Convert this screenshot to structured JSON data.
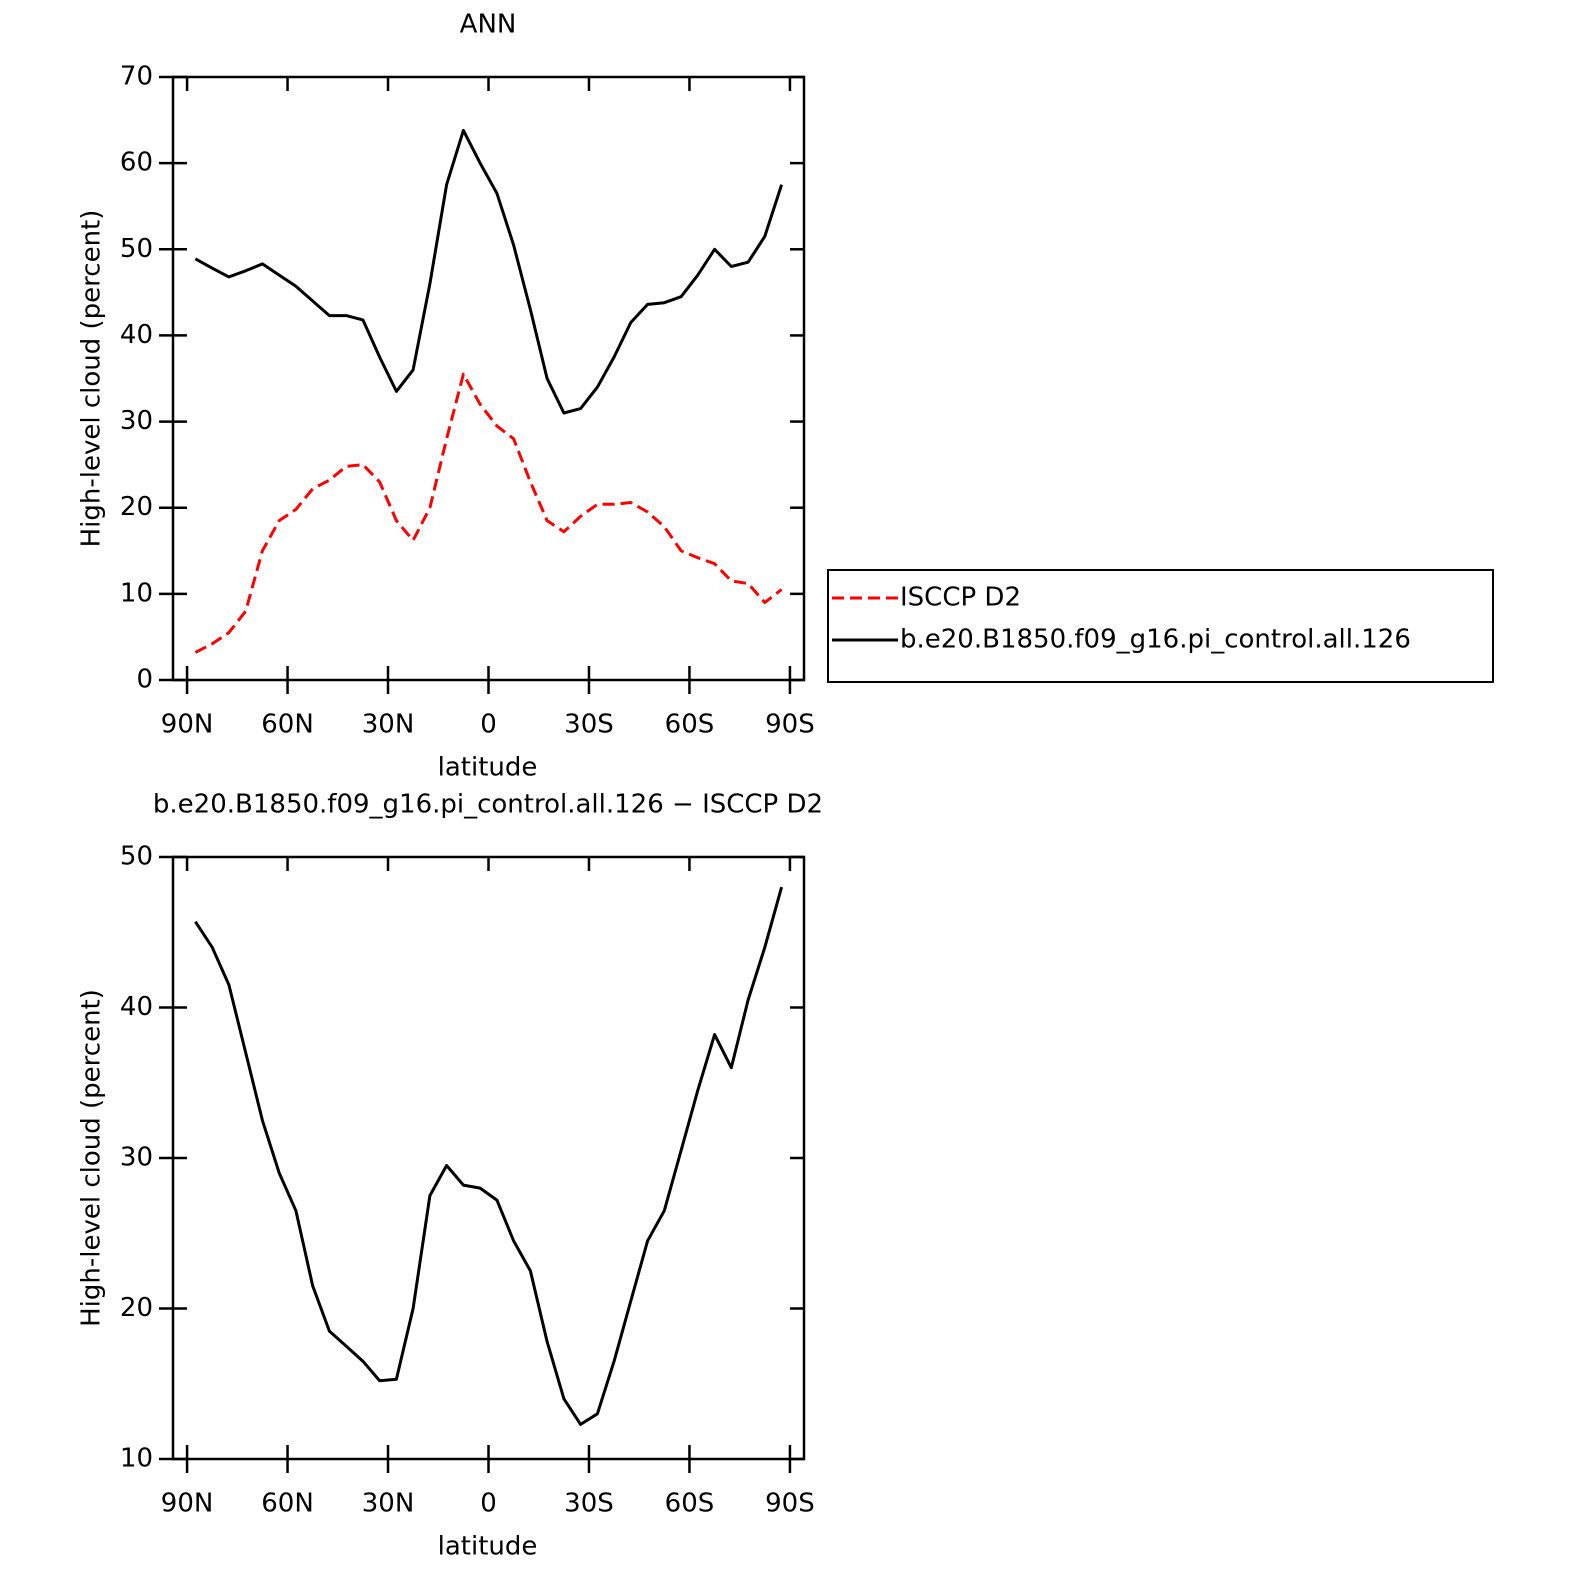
{
  "chart_data": [
    {
      "type": "line",
      "title": "ANN",
      "x_label": "latitude",
      "y_label": "High-level cloud (percent)",
      "x": [
        87.5,
        82.5,
        77.5,
        72.5,
        67.5,
        62.5,
        57.5,
        52.5,
        47.5,
        42.5,
        37.5,
        32.5,
        27.5,
        22.5,
        17.5,
        12.5,
        7.5,
        2.5,
        -2.5,
        -7.5,
        -12.5,
        -17.5,
        -22.5,
        -27.5,
        -32.5,
        -37.5,
        -42.5,
        -47.5,
        -52.5,
        -57.5,
        -62.5,
        -67.5,
        -72.5,
        -77.5,
        -82.5,
        -87.5
      ],
      "series": [
        {
          "name": "ISCCP D2",
          "color": "#ff0000",
          "dash": "dashed",
          "values": [
            3.2,
            4.2,
            5.5,
            8,
            15,
            18.5,
            19.8,
            22.2,
            23.2,
            24.8,
            25,
            23,
            18.5,
            16.2,
            20,
            28,
            35.5,
            32,
            29.5,
            28,
            23,
            18.5,
            17.2,
            19,
            20.4,
            20.4,
            20.6,
            19.5,
            17.8,
            15,
            14.2,
            13.5,
            11.5,
            11.2,
            9,
            10.5
          ]
        },
        {
          "name": "b.e20.B1850.f09_g16.pi_control.all.126",
          "color": "#000000",
          "dash": "solid",
          "values": [
            48.9,
            47.8,
            46.8,
            47.5,
            48.3,
            47,
            45.7,
            44,
            42.3,
            42.3,
            41.8,
            37.5,
            33.5,
            36,
            46,
            57.5,
            63.8,
            60,
            56.5,
            50.5,
            43,
            35,
            31,
            31.5,
            34,
            37.5,
            41.5,
            43.6,
            43.8,
            44.5,
            47,
            50,
            48,
            48.5,
            51.5,
            57.5
          ]
        }
      ],
      "xlim": [
        94.2,
        -94.2
      ],
      "xticks": [
        {
          "value": 90,
          "label": "90N"
        },
        {
          "value": 60,
          "label": "60N"
        },
        {
          "value": 30,
          "label": "30N"
        },
        0,
        {
          "value": -30,
          "label": "30S"
        },
        {
          "value": -60,
          "label": "60S"
        },
        {
          "value": -90,
          "label": "90S"
        }
      ],
      "ylim": [
        0,
        70
      ],
      "yticks": [
        0,
        10,
        20,
        30,
        40,
        50,
        60,
        70
      ],
      "legend": "right"
    },
    {
      "type": "line",
      "title": "b.e20.B1850.f09_g16.pi_control.all.126 − ISCCP D2",
      "x_label": "latitude",
      "y_label": "High-level cloud (percent)",
      "x": [
        87.5,
        82.5,
        77.5,
        72.5,
        67.5,
        62.5,
        57.5,
        52.5,
        47.5,
        42.5,
        37.5,
        32.5,
        27.5,
        22.5,
        17.5,
        12.5,
        7.5,
        2.5,
        -2.5,
        -7.5,
        -12.5,
        -17.5,
        -22.5,
        -27.5,
        -32.5,
        -37.5,
        -42.5,
        -47.5,
        -52.5,
        -57.5,
        -62.5,
        -67.5,
        -72.5,
        -77.5,
        -82.5,
        -87.5
      ],
      "values": [
        45.7,
        44,
        41.5,
        37,
        32.5,
        29,
        26.5,
        21.5,
        18.5,
        17.5,
        16.5,
        15.2,
        15.3,
        20,
        27.5,
        29.5,
        28.2,
        28,
        27.2,
        24.5,
        22.5,
        17.8,
        14,
        12.3,
        13,
        16.5,
        20.5,
        24.5,
        26.5,
        30.5,
        34.5,
        38.2,
        36,
        40.5,
        44,
        48
      ],
      "color": "#000000",
      "xlim": [
        94.2,
        -94.2
      ],
      "xticks": [
        {
          "value": 90,
          "label": "90N"
        },
        {
          "value": 60,
          "label": "60N"
        },
        {
          "value": 30,
          "label": "30N"
        },
        0,
        {
          "value": -30,
          "label": "30S"
        },
        {
          "value": -60,
          "label": "60S"
        },
        {
          "value": -90,
          "label": "90S"
        }
      ],
      "ylim": [
        10,
        50
      ],
      "yticks": [
        10,
        20,
        30,
        40,
        50
      ]
    }
  ]
}
